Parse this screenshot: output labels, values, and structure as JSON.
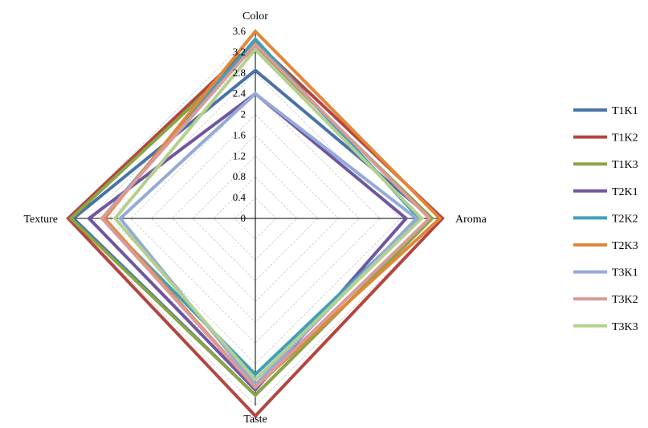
{
  "chart_data": {
    "type": "radar",
    "axes": [
      "Color",
      "Aroma",
      "Taste",
      "Texture"
    ],
    "ticks": [
      "0",
      "0.4",
      "0.8",
      "1.2",
      "1.6",
      "2",
      "2.4",
      "2.8",
      "3.2",
      "3.6"
    ],
    "rmax": 3.6,
    "grid": true,
    "legend_position": "right",
    "series": [
      {
        "name": "T1K1",
        "color": "#4a72a8",
        "values": [
          2.85,
          3.4,
          3.4,
          3.5
        ]
      },
      {
        "name": "T1K2",
        "color": "#b3463f",
        "values": [
          3.4,
          3.6,
          3.8,
          3.6
        ]
      },
      {
        "name": "T1K3",
        "color": "#8aa544",
        "values": [
          3.3,
          3.4,
          3.4,
          3.55
        ]
      },
      {
        "name": "T2K1",
        "color": "#6f56a0",
        "values": [
          2.4,
          2.9,
          3.3,
          3.2
        ]
      },
      {
        "name": "T2K2",
        "color": "#3f9fba",
        "values": [
          3.45,
          3.15,
          3.0,
          2.95
        ]
      },
      {
        "name": "T2K3",
        "color": "#e0883a",
        "values": [
          3.6,
          3.55,
          3.25,
          2.9
        ]
      },
      {
        "name": "T3K1",
        "color": "#94abd6",
        "values": [
          2.4,
          3.1,
          3.2,
          2.6
        ]
      },
      {
        "name": "T3K2",
        "color": "#d99a99",
        "values": [
          3.35,
          3.35,
          3.25,
          2.95
        ]
      },
      {
        "name": "T3K3",
        "color": "#b5d08e",
        "values": [
          3.25,
          3.2,
          3.1,
          2.7
        ]
      }
    ]
  }
}
